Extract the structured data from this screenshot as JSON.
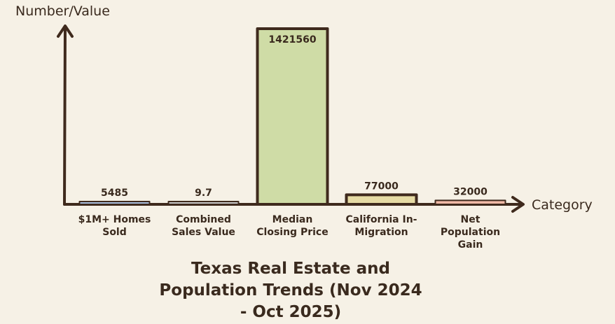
{
  "chart_data": {
    "type": "bar",
    "title": "Texas Real Estate and Population Trends (Nov 2024 - Oct 2025)",
    "title_lines": [
      "Texas Real Estate and",
      "Population Trends (Nov 2024",
      "- Oct 2025)"
    ],
    "xlabel": "Category",
    "ylabel": "Number/Value",
    "categories": [
      "$1M+ Homes Sold",
      "Combined Sales Value",
      "Median Closing Price",
      "California In-Migration",
      "Net Population Gain"
    ],
    "category_lines": [
      [
        "$1M+ Homes",
        "Sold"
      ],
      [
        "Combined",
        "Sales Value"
      ],
      [
        "Median",
        "Closing Price"
      ],
      [
        "California In-",
        "Migration"
      ],
      [
        "Net",
        "Population",
        "Gain"
      ]
    ],
    "values": [
      5485,
      9.7,
      1421560,
      77000,
      32000
    ],
    "value_labels": [
      "5485",
      "9.7",
      "1421560",
      "77000",
      "32000"
    ],
    "bar_colors": [
      "#a9bfe0",
      "#c9c9c9",
      "#cfdca6",
      "#e6dba4",
      "#f0b9a6"
    ],
    "ylim": [
      0,
      1421560
    ],
    "grid": false,
    "legend": "none"
  }
}
